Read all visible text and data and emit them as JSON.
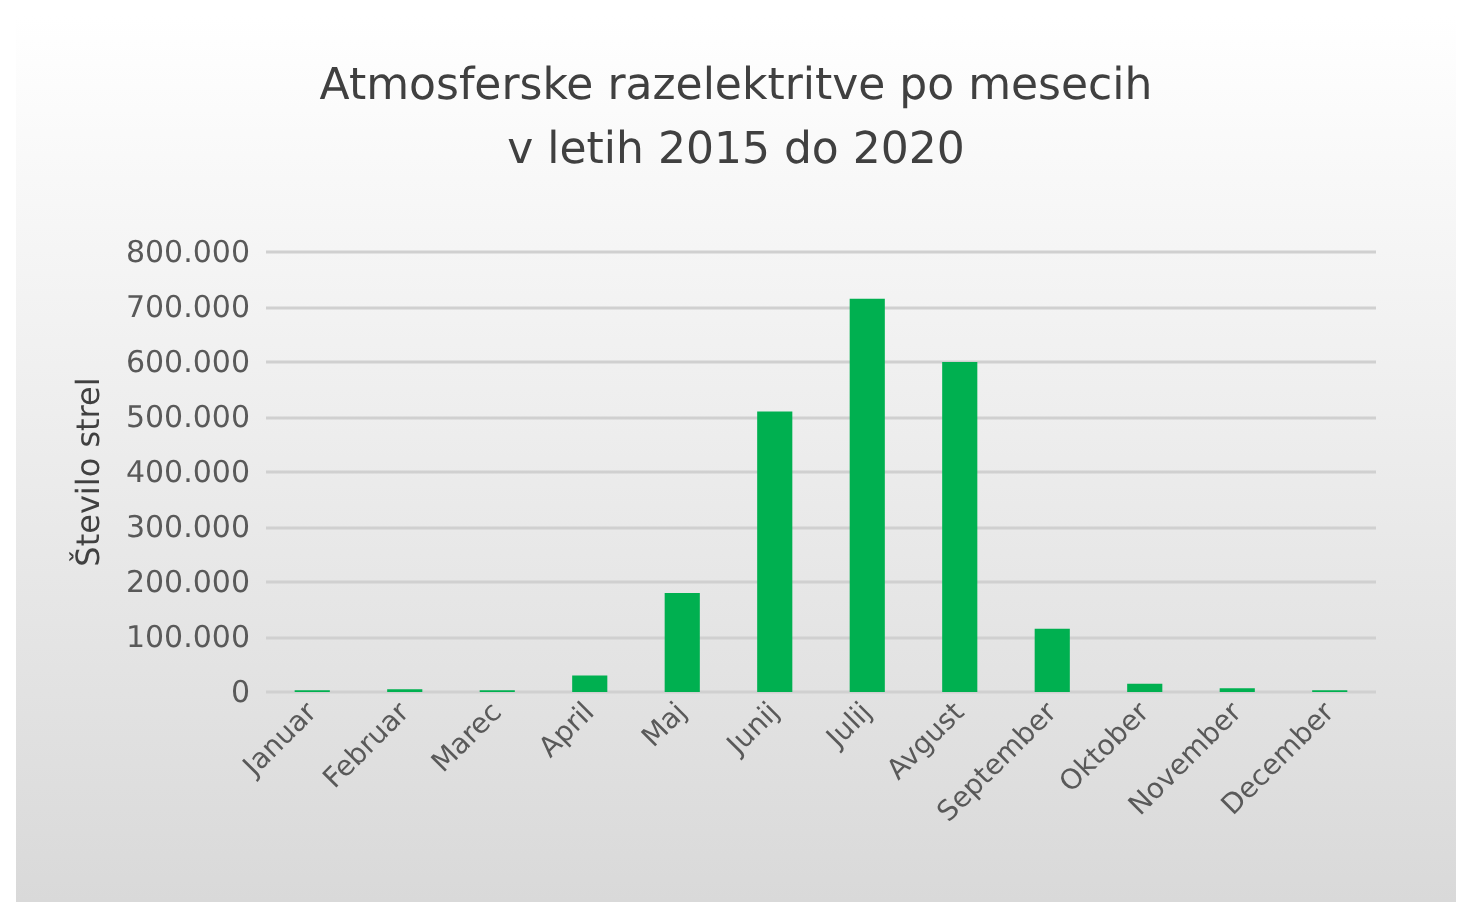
{
  "chart_data": {
    "type": "bar",
    "title": "Atmosferske razelektritve po mesecih\nv letih 2015 do 2020",
    "ylabel": "Število strel",
    "categories": [
      "Januar",
      "Februar",
      "Marec",
      "April",
      "Maj",
      "Junij",
      "Julij",
      "Avgust",
      "September",
      "Oktober",
      "November",
      "December"
    ],
    "values": [
      3000,
      5000,
      3000,
      30000,
      180000,
      510000,
      715000,
      600000,
      115000,
      15000,
      7000,
      3000
    ],
    "color": "#00b050",
    "ylim": [
      0,
      800000
    ],
    "yticks": [
      {
        "value": 0,
        "label": "0"
      },
      {
        "value": 100000,
        "label": "100.000"
      },
      {
        "value": 200000,
        "label": "200.000"
      },
      {
        "value": 300000,
        "label": "300.000"
      },
      {
        "value": 400000,
        "label": "400.000"
      },
      {
        "value": 500000,
        "label": "500.000"
      },
      {
        "value": 600000,
        "label": "600.000"
      },
      {
        "value": 700000,
        "label": "700.000"
      },
      {
        "value": 800000,
        "label": "800.000"
      }
    ],
    "grid": true
  }
}
